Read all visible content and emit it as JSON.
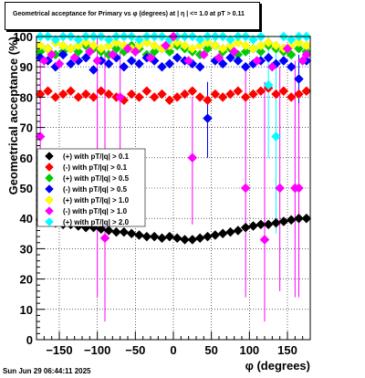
{
  "title": "Geometrical acceptance for Primary vs φ (degrees) at |  η  | <= 1.0 at pT > 0.11",
  "footer": "Sun Jun 29 06:44:11 2025",
  "chart_data": {
    "type": "scatter",
    "xlabel": "φ (degrees)",
    "ylabel": "Geometrical acceptance (%)",
    "xlim": [
      -180,
      180
    ],
    "ylim": [
      0,
      100
    ],
    "xticks": [
      -150,
      -100,
      -50,
      0,
      50,
      100,
      150
    ],
    "yticks": [
      0,
      10,
      20,
      30,
      40,
      50,
      60,
      70,
      80,
      90,
      100
    ],
    "grid": true,
    "legend_position": "left",
    "series": [
      {
        "name": "(+) with pT/|q| > 0.1",
        "color": "#000000",
        "marker": "diamond",
        "x": [
          -175,
          -165,
          -155,
          -145,
          -135,
          -125,
          -115,
          -105,
          -95,
          -85,
          -75,
          -65,
          -55,
          -45,
          -35,
          -25,
          -15,
          -5,
          5,
          15,
          25,
          35,
          45,
          55,
          65,
          75,
          85,
          95,
          105,
          115,
          125,
          135,
          145,
          155,
          165,
          175
        ],
        "y": [
          39.5,
          39,
          38.5,
          38,
          38,
          37.5,
          37,
          37,
          36.5,
          36,
          35.5,
          35.5,
          35,
          34.5,
          34,
          34,
          33.5,
          34,
          33.5,
          33,
          33,
          33.5,
          34,
          34.5,
          35,
          35.5,
          36,
          37,
          37.5,
          38,
          38,
          38.5,
          39,
          39.5,
          40,
          40
        ]
      },
      {
        "name": "(-) with pT/|q| > 0.1",
        "color": "#ff0000",
        "marker": "diamond",
        "x": [
          -175,
          -165,
          -155,
          -145,
          -135,
          -125,
          -115,
          -105,
          -95,
          -85,
          -75,
          -65,
          -55,
          -45,
          -35,
          -25,
          -15,
          -5,
          5,
          15,
          25,
          35,
          45,
          55,
          65,
          75,
          85,
          95,
          105,
          115,
          125,
          135,
          145,
          155,
          165,
          175
        ],
        "y": [
          81,
          82,
          80,
          81,
          82,
          80,
          81,
          80,
          82,
          81,
          80,
          79,
          81,
          80,
          82,
          80,
          81,
          79,
          80,
          81,
          82,
          80,
          79,
          81,
          80,
          81,
          82,
          80,
          81,
          82,
          83,
          81,
          82,
          80,
          81,
          82
        ]
      },
      {
        "name": "(+) with pT/|q| > 0.5",
        "color": "#00cc00",
        "marker": "diamond",
        "x": [
          -175,
          -165,
          -155,
          -145,
          -135,
          -125,
          -115,
          -105,
          -95,
          -85,
          -75,
          -65,
          -55,
          -45,
          -35,
          -25,
          -15,
          -5,
          5,
          15,
          25,
          35,
          45,
          55,
          65,
          75,
          85,
          95,
          105,
          115,
          125,
          135,
          145,
          155,
          165,
          175
        ],
        "y": [
          95,
          96,
          94,
          95,
          96,
          95,
          97,
          96,
          95,
          94,
          96,
          95,
          97,
          96,
          94,
          95,
          96,
          95,
          97,
          96,
          95,
          94,
          96,
          97,
          95,
          96,
          94,
          95,
          96,
          95,
          97,
          96,
          95,
          94,
          96,
          95
        ]
      },
      {
        "name": "(-) with pT/|q| > 0.5",
        "color": "#0000ff",
        "marker": "diamond",
        "x": [
          -175,
          -165,
          -155,
          -145,
          -135,
          -125,
          -115,
          -105,
          -95,
          -85,
          -75,
          -65,
          -55,
          -45,
          -35,
          -25,
          -15,
          -5,
          5,
          15,
          25,
          35,
          45,
          55,
          65,
          75,
          85,
          95,
          105,
          115,
          125,
          135,
          145,
          155,
          165,
          175
        ],
        "y": [
          93,
          92,
          90,
          94,
          91,
          92,
          93,
          89,
          92,
          91,
          93,
          90,
          92,
          91,
          93,
          92,
          90,
          91,
          93,
          92,
          91,
          90,
          73,
          92,
          91,
          93,
          92,
          90,
          91,
          92,
          93,
          91,
          92,
          90,
          86,
          92
        ]
      },
      {
        "name": "(+) with pT/|q| > 1.0",
        "color": "#ffff00",
        "marker": "diamond",
        "x": [
          -175,
          -165,
          -155,
          -145,
          -135,
          -125,
          -115,
          -105,
          -95,
          -85,
          -75,
          -65,
          -55,
          -45,
          -35,
          -25,
          -15,
          -5,
          5,
          15,
          25,
          35,
          45,
          55,
          65,
          75,
          85,
          95,
          105,
          115,
          125,
          135,
          145,
          155,
          165,
          175
        ],
        "y": [
          97,
          96,
          98,
          97,
          96,
          97,
          98,
          97,
          96,
          97,
          98,
          97,
          96,
          97,
          98,
          97,
          96,
          97,
          98,
          97,
          96,
          97,
          98,
          97,
          96,
          97,
          98,
          97,
          96,
          97,
          98,
          97,
          96,
          97,
          98,
          97
        ]
      },
      {
        "name": "(-) with pT/|q| > 1.0",
        "color": "#ff00ff",
        "marker": "diamond",
        "x": [
          -175,
          -170,
          -160,
          -150,
          -130,
          -110,
          -100,
          -90,
          -80,
          -70,
          -60,
          -50,
          -30,
          -10,
          0,
          20,
          25,
          40,
          60,
          80,
          95,
          110,
          120,
          130,
          140,
          150,
          160,
          165,
          170,
          175
        ],
        "y": [
          67,
          92,
          94,
          91,
          93,
          95,
          92,
          33.5,
          94,
          80,
          96,
          95,
          93,
          97,
          100,
          92,
          60,
          94,
          93,
          95,
          50,
          92,
          33,
          90,
          50,
          96,
          50,
          50,
          92,
          94
        ]
      },
      {
        "name": "(+) with pT/|q| > 2.0",
        "color": "#00ffff",
        "marker": "diamond",
        "x": [
          -175,
          -165,
          -155,
          -145,
          -135,
          -125,
          -115,
          -105,
          -95,
          -85,
          -75,
          -65,
          -55,
          -45,
          -35,
          -25,
          -15,
          -5,
          5,
          15,
          25,
          35,
          45,
          55,
          65,
          75,
          85,
          95,
          105,
          115,
          125,
          135,
          145,
          155,
          165,
          175
        ],
        "y": [
          100,
          100,
          99,
          100,
          100,
          99,
          100,
          100,
          100,
          99,
          100,
          100,
          100,
          99,
          100,
          100,
          100,
          99,
          100,
          100,
          100,
          99,
          100,
          100,
          100,
          99,
          100,
          100,
          99,
          100,
          84,
          67,
          100,
          99,
          100,
          100
        ]
      }
    ],
    "error_bars": [
      {
        "series": "(-) with pT/|q| > 1.0",
        "x": -90,
        "y": 33.5,
        "low": 6,
        "high": 95
      },
      {
        "series": "(-) with pT/|q| > 1.0",
        "x": -100,
        "y": 92,
        "low": 14,
        "high": 100
      },
      {
        "series": "(-) with pT/|q| > 1.0",
        "x": -175,
        "y": 67,
        "low": 40,
        "high": 95
      },
      {
        "series": "(-) with pT/|q| > 1.0",
        "x": 25,
        "y": 60,
        "low": 38,
        "high": 80
      },
      {
        "series": "(-) with pT/|q| > 1.0",
        "x": 95,
        "y": 50,
        "low": 14,
        "high": 90
      },
      {
        "series": "(-) with pT/|q| > 1.0",
        "x": 120,
        "y": 33,
        "low": 6,
        "high": 85
      },
      {
        "series": "(-) with pT/|q| > 1.0",
        "x": 140,
        "y": 50,
        "low": 16,
        "high": 90
      },
      {
        "series": "(-) with pT/|q| > 1.0",
        "x": 160,
        "y": 50,
        "low": 14,
        "high": 92
      },
      {
        "series": "(-) with pT/|q| > 1.0",
        "x": 165,
        "y": 50,
        "low": 14,
        "high": 92
      },
      {
        "series": "(-) with pT/|q| > 1.0",
        "x": -70,
        "y": 80,
        "low": 60,
        "high": 95
      },
      {
        "series": "(+) with pT/|q| > 2.0",
        "x": 135,
        "y": 67,
        "low": 35,
        "high": 95
      },
      {
        "series": "(+) with pT/|q| > 2.0",
        "x": 125,
        "y": 84,
        "low": 60,
        "high": 100
      },
      {
        "series": "(-) with pT/|q| > 0.5",
        "x": 45,
        "y": 73,
        "low": 60,
        "high": 85
      },
      {
        "series": "(-) with pT/|q| > 0.5",
        "x": 165,
        "y": 86,
        "low": 78,
        "high": 94
      }
    ]
  }
}
